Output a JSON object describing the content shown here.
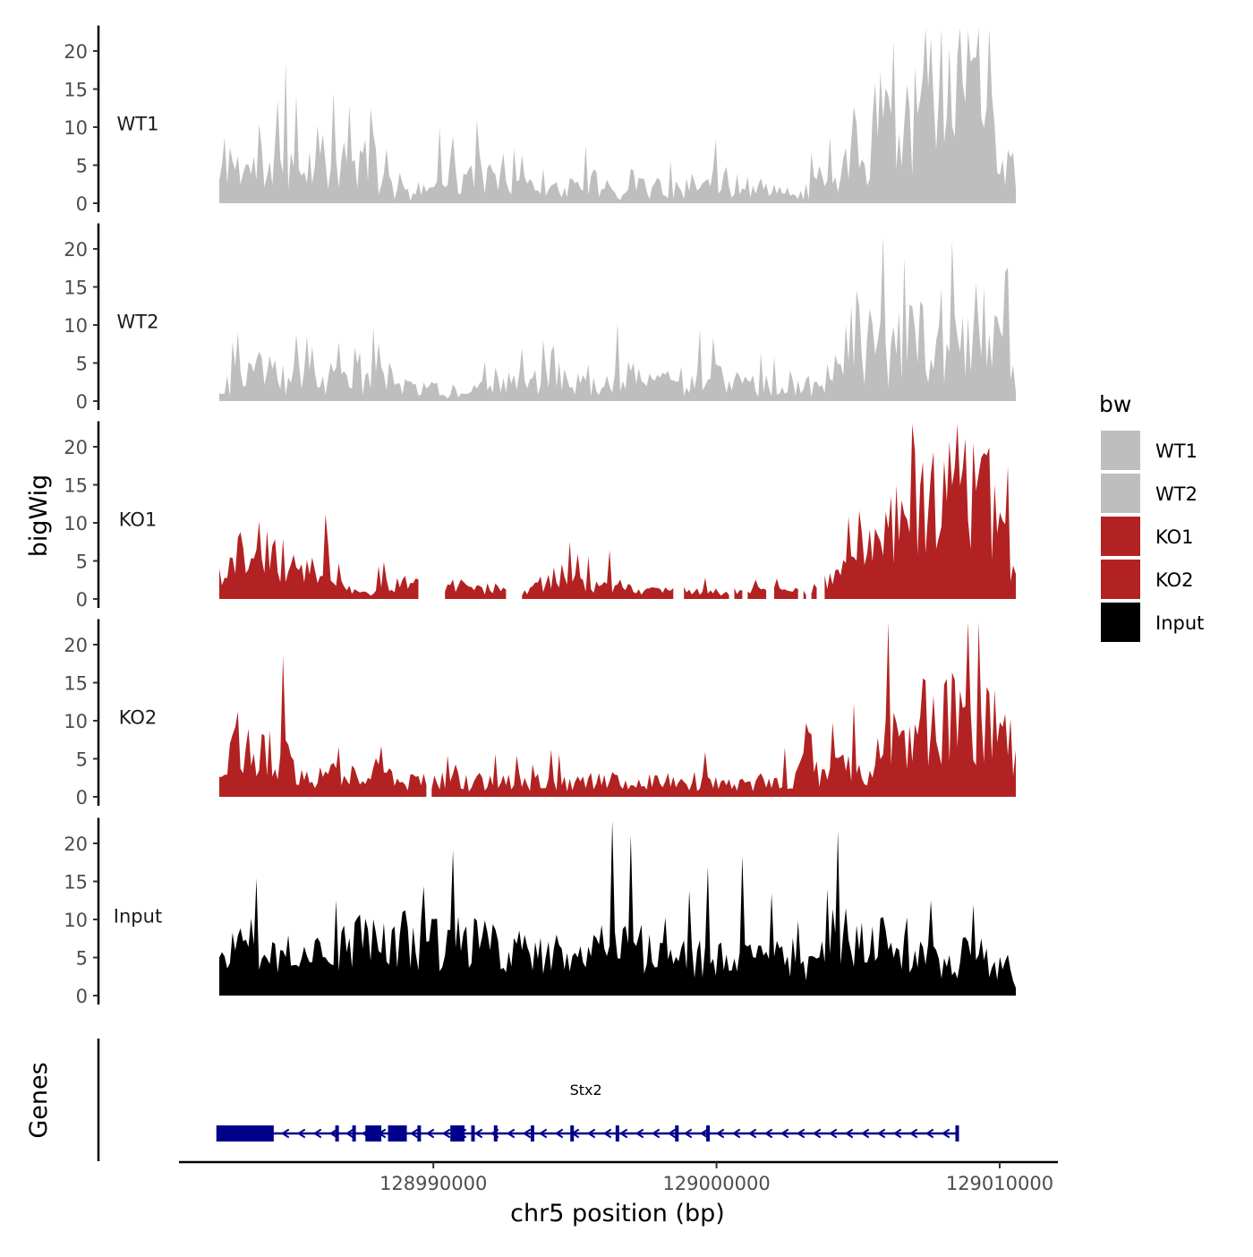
{
  "chart_data": {
    "type": "area",
    "title": "",
    "ylabel": "bigWig",
    "xlabel": "chr5 position (bp)",
    "x_range": [
      128982440,
      129010570
    ],
    "x_ticks": [
      {
        "value": 128990000,
        "label": "128990000"
      },
      {
        "value": 129000000,
        "label": "129000000"
      },
      {
        "value": 129010000,
        "label": "129010000"
      }
    ],
    "ylim": [
      0,
      23
    ],
    "y_ticks": [
      {
        "value": 0,
        "label": "0"
      },
      {
        "value": 5,
        "label": "5"
      },
      {
        "value": 10,
        "label": "10"
      },
      {
        "value": 15,
        "label": "15"
      },
      {
        "value": 20,
        "label": "20"
      }
    ],
    "grid": false,
    "legend": {
      "title": "bw",
      "position": "right",
      "entries": [
        {
          "label": "WT1",
          "color": "#BEBEBE"
        },
        {
          "label": "WT2",
          "color": "#BEBEBE"
        },
        {
          "label": "KO1",
          "color": "#B22222"
        },
        {
          "label": "KO2",
          "color": "#B22222"
        },
        {
          "label": "Input",
          "color": "#000000"
        }
      ]
    },
    "tracks": [
      {
        "name": "WT1",
        "color": "#BEBEBE",
        "anchors": [
          [
            0,
            3
          ],
          [
            0.01,
            7
          ],
          [
            0.02,
            5
          ],
          [
            0.05,
            4
          ],
          [
            0.08,
            6
          ],
          [
            0.1,
            5
          ],
          [
            0.12,
            6
          ],
          [
            0.13,
            8
          ],
          [
            0.15,
            5
          ],
          [
            0.18,
            4
          ],
          [
            0.19,
            10
          ],
          [
            0.2,
            3
          ],
          [
            0.22,
            2
          ],
          [
            0.24,
            1
          ],
          [
            0.26,
            2
          ],
          [
            0.28,
            5
          ],
          [
            0.3,
            3
          ],
          [
            0.33,
            4
          ],
          [
            0.35,
            2
          ],
          [
            0.38,
            4
          ],
          [
            0.4,
            2
          ],
          [
            0.45,
            2
          ],
          [
            0.48,
            3
          ],
          [
            0.5,
            1
          ],
          [
            0.53,
            2
          ],
          [
            0.56,
            2
          ],
          [
            0.6,
            2
          ],
          [
            0.63,
            3
          ],
          [
            0.67,
            2
          ],
          [
            0.7,
            2
          ],
          [
            0.73,
            1
          ],
          [
            0.75,
            3
          ],
          [
            0.78,
            3
          ],
          [
            0.8,
            7
          ],
          [
            0.82,
            5
          ],
          [
            0.84,
            10
          ],
          [
            0.86,
            11
          ],
          [
            0.88,
            15
          ],
          [
            0.9,
            16
          ],
          [
            0.92,
            13
          ],
          [
            0.95,
            14
          ],
          [
            0.97,
            10
          ],
          [
            0.99,
            5
          ],
          [
            1,
            2
          ]
        ],
        "gaps": [
          [
            0.427,
            0.429
          ]
        ],
        "seed": 11,
        "noise": 0.75,
        "spikes": 0.1
      },
      {
        "name": "WT2",
        "color": "#BEBEBE",
        "anchors": [
          [
            0,
            1
          ],
          [
            0.02,
            3
          ],
          [
            0.05,
            4
          ],
          [
            0.08,
            3
          ],
          [
            0.1,
            3
          ],
          [
            0.12,
            3
          ],
          [
            0.15,
            3
          ],
          [
            0.18,
            3
          ],
          [
            0.2,
            4
          ],
          [
            0.23,
            2
          ],
          [
            0.27,
            1.5
          ],
          [
            0.3,
            1
          ],
          [
            0.35,
            2
          ],
          [
            0.4,
            3
          ],
          [
            0.43,
            3
          ],
          [
            0.46,
            2
          ],
          [
            0.5,
            3
          ],
          [
            0.55,
            3
          ],
          [
            0.58,
            2
          ],
          [
            0.62,
            3
          ],
          [
            0.66,
            2
          ],
          [
            0.7,
            2
          ],
          [
            0.75,
            2
          ],
          [
            0.78,
            4
          ],
          [
            0.8,
            5
          ],
          [
            0.82,
            6
          ],
          [
            0.85,
            7
          ],
          [
            0.88,
            8
          ],
          [
            0.9,
            9
          ],
          [
            0.92,
            9
          ],
          [
            0.95,
            10
          ],
          [
            0.98,
            8
          ],
          [
            1,
            4
          ]
        ],
        "gaps": [],
        "seed": 23,
        "noise": 0.75,
        "spikes": 0.1
      },
      {
        "name": "KO1",
        "color": "#B22222",
        "anchors": [
          [
            0,
            4
          ],
          [
            0.02,
            5
          ],
          [
            0.04,
            7
          ],
          [
            0.06,
            6
          ],
          [
            0.08,
            5
          ],
          [
            0.1,
            4
          ],
          [
            0.12,
            4
          ],
          [
            0.15,
            3
          ],
          [
            0.17,
            1
          ],
          [
            0.19,
            1
          ],
          [
            0.2,
            2
          ],
          [
            0.23,
            2
          ],
          [
            0.25,
            2
          ],
          [
            0.28,
            1
          ],
          [
            0.3,
            2
          ],
          [
            0.33,
            1
          ],
          [
            0.35,
            2
          ],
          [
            0.38,
            1
          ],
          [
            0.4,
            2
          ],
          [
            0.43,
            3
          ],
          [
            0.46,
            2
          ],
          [
            0.5,
            2
          ],
          [
            0.53,
            1
          ],
          [
            0.56,
            1
          ],
          [
            0.6,
            1
          ],
          [
            0.63,
            1
          ],
          [
            0.66,
            1
          ],
          [
            0.7,
            1
          ],
          [
            0.73,
            1
          ],
          [
            0.76,
            2
          ],
          [
            0.78,
            3
          ],
          [
            0.8,
            5
          ],
          [
            0.82,
            7
          ],
          [
            0.85,
            10
          ],
          [
            0.88,
            14
          ],
          [
            0.9,
            16
          ],
          [
            0.92,
            15
          ],
          [
            0.95,
            16
          ],
          [
            0.97,
            12
          ],
          [
            0.99,
            6
          ],
          [
            1,
            4
          ]
        ],
        "gaps": [
          [
            0.253,
            0.283
          ],
          [
            0.362,
            0.378
          ],
          [
            0.572,
            0.58
          ],
          [
            0.738,
            0.742
          ],
          [
            0.753,
            0.757
          ],
          [
            0.73,
            0.733
          ],
          [
            0.69,
            0.695
          ],
          [
            0.642,
            0.645
          ],
          [
            0.658,
            0.662
          ]
        ],
        "seed": 37,
        "noise": 0.6,
        "spikes": 0.08
      },
      {
        "name": "KO2",
        "color": "#B22222",
        "anchors": [
          [
            0,
            6
          ],
          [
            0.02,
            7
          ],
          [
            0.05,
            6
          ],
          [
            0.08,
            5
          ],
          [
            0.1,
            4
          ],
          [
            0.12,
            3
          ],
          [
            0.15,
            3
          ],
          [
            0.18,
            2
          ],
          [
            0.2,
            3
          ],
          [
            0.23,
            2
          ],
          [
            0.26,
            2
          ],
          [
            0.3,
            2
          ],
          [
            0.35,
            2
          ],
          [
            0.4,
            2
          ],
          [
            0.45,
            2
          ],
          [
            0.5,
            2
          ],
          [
            0.55,
            2
          ],
          [
            0.6,
            2
          ],
          [
            0.65,
            2
          ],
          [
            0.7,
            2
          ],
          [
            0.73,
            3
          ],
          [
            0.76,
            3
          ],
          [
            0.8,
            4
          ],
          [
            0.82,
            4
          ],
          [
            0.85,
            8
          ],
          [
            0.88,
            10
          ],
          [
            0.9,
            10
          ],
          [
            0.93,
            11
          ],
          [
            0.96,
            10
          ],
          [
            0.98,
            8
          ],
          [
            1,
            7
          ]
        ],
        "gaps": [
          [
            0.262,
            0.266
          ],
          [
            0.714,
            0.716
          ]
        ],
        "seed": 53,
        "noise": 0.65,
        "spikes": 0.1
      },
      {
        "name": "Input",
        "color": "#000000",
        "anchors": [
          [
            0,
            5
          ],
          [
            0.03,
            6
          ],
          [
            0.06,
            5
          ],
          [
            0.1,
            6
          ],
          [
            0.14,
            5
          ],
          [
            0.17,
            7
          ],
          [
            0.2,
            8
          ],
          [
            0.22,
            8
          ],
          [
            0.25,
            7
          ],
          [
            0.28,
            7
          ],
          [
            0.32,
            7
          ],
          [
            0.35,
            6
          ],
          [
            0.38,
            6
          ],
          [
            0.42,
            6
          ],
          [
            0.45,
            5
          ],
          [
            0.48,
            6
          ],
          [
            0.5,
            7
          ],
          [
            0.55,
            5
          ],
          [
            0.6,
            5
          ],
          [
            0.65,
            5
          ],
          [
            0.7,
            5
          ],
          [
            0.73,
            3
          ],
          [
            0.75,
            4
          ],
          [
            0.78,
            9
          ],
          [
            0.8,
            8
          ],
          [
            0.83,
            7
          ],
          [
            0.86,
            7
          ],
          [
            0.9,
            5
          ],
          [
            0.93,
            5
          ],
          [
            0.96,
            5
          ],
          [
            0.99,
            4
          ],
          [
            1,
            1
          ]
        ],
        "gaps": [],
        "seed": 71,
        "noise": 0.55,
        "spikes": 0.08
      }
    ],
    "genes_track": {
      "label": "Genes",
      "gene": {
        "name": "Stx2",
        "start": 128982400,
        "end": 129008500,
        "strand": "-",
        "color": "#00008B",
        "exons": [
          [
            128982400,
            128984300
          ],
          [
            128987600,
            128988100
          ],
          [
            128988400,
            128989000
          ],
          [
            128990600,
            128991100
          ]
        ],
        "exon_marks": [
          128982400,
          128983000,
          128984300,
          128986600,
          128987200,
          128988100,
          128989000,
          128989500,
          128991400,
          128992200,
          128993500,
          128994900,
          128996500,
          128998600,
          128999700,
          129008500
        ]
      }
    }
  }
}
